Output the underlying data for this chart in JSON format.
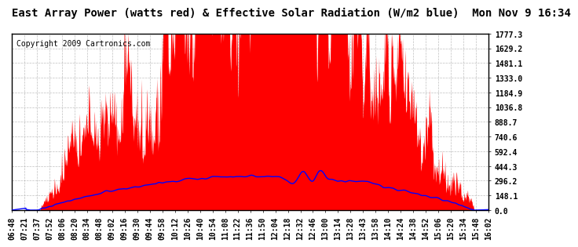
{
  "title": "East Array Power (watts red) & Effective Solar Radiation (W/m2 blue)  Mon Nov 9 16:34",
  "copyright": "Copyright 2009 Cartronics.com",
  "ymax": 1777.3,
  "yticks": [
    0.0,
    148.1,
    296.2,
    444.3,
    592.4,
    740.6,
    888.7,
    1036.8,
    1184.9,
    1333.0,
    1481.1,
    1629.2,
    1777.3
  ],
  "bg_color": "#ffffff",
  "grid_color": "#b0b0b0",
  "red_color": "#ff0000",
  "blue_color": "#0000ff",
  "title_fontsize": 10,
  "copyright_fontsize": 7,
  "tick_fontsize": 7,
  "xtick_labels": [
    "06:48",
    "07:21",
    "07:37",
    "07:52",
    "08:06",
    "08:20",
    "08:34",
    "08:48",
    "09:02",
    "09:16",
    "09:30",
    "09:44",
    "09:58",
    "10:12",
    "10:26",
    "10:40",
    "10:54",
    "11:08",
    "11:22",
    "11:36",
    "11:50",
    "12:04",
    "12:18",
    "12:32",
    "12:46",
    "13:00",
    "13:14",
    "13:28",
    "13:43",
    "13:58",
    "14:10",
    "14:24",
    "14:38",
    "14:52",
    "15:06",
    "15:20",
    "15:34",
    "15:48",
    "16:02"
  ]
}
